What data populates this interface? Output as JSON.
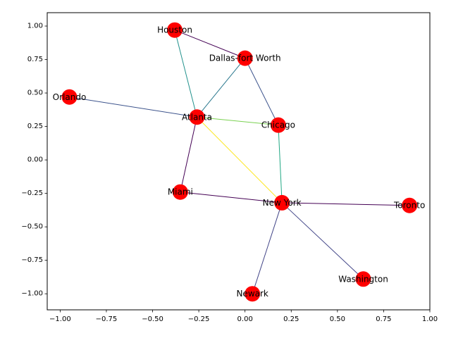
{
  "chart_data": {
    "type": "scatter",
    "title": "",
    "xlabel": "",
    "ylabel": "",
    "xlim": [
      -1.07,
      1.0
    ],
    "ylim": [
      -1.12,
      1.1
    ],
    "xticks": [
      -1.0,
      -0.75,
      -0.5,
      -0.25,
      0.0,
      0.25,
      0.5,
      0.75,
      1.0
    ],
    "xtick_labels": [
      "−1.00",
      "−0.75",
      "−0.50",
      "−0.25",
      "0.00",
      "0.25",
      "0.50",
      "0.75",
      "1.00"
    ],
    "yticks": [
      1.0,
      0.75,
      0.5,
      0.25,
      0.0,
      -0.25,
      -0.5,
      -0.75,
      -1.0
    ],
    "ytick_labels": [
      "1.00",
      "0.75",
      "0.50",
      "0.25",
      "0.00",
      "−0.25",
      "−0.50",
      "−0.75",
      "−1.00"
    ],
    "grid": false,
    "node_color": "#ff0000",
    "nodes": [
      {
        "name": "Houston",
        "x": -0.38,
        "y": 0.97
      },
      {
        "name": "Dallas-fort Worth",
        "x": 0.0,
        "y": 0.76
      },
      {
        "name": "Orlando",
        "x": -0.95,
        "y": 0.47
      },
      {
        "name": "Atlanta",
        "x": -0.26,
        "y": 0.32
      },
      {
        "name": "Chicago",
        "x": 0.18,
        "y": 0.26
      },
      {
        "name": "Miami",
        "x": -0.35,
        "y": -0.24
      },
      {
        "name": "New York",
        "x": 0.2,
        "y": -0.32
      },
      {
        "name": "Toronto",
        "x": 0.89,
        "y": -0.34
      },
      {
        "name": "Washington",
        "x": 0.64,
        "y": -0.89
      },
      {
        "name": "Newark",
        "x": 0.04,
        "y": -1.0
      }
    ],
    "edges": [
      {
        "source": "Houston",
        "target": "Dallas-fort Worth",
        "color": "#440154"
      },
      {
        "source": "Houston",
        "target": "Atlanta",
        "color": "#21918c"
      },
      {
        "source": "Dallas-fort Worth",
        "target": "Atlanta",
        "color": "#2a788e"
      },
      {
        "source": "Dallas-fort Worth",
        "target": "Chicago",
        "color": "#3b528b"
      },
      {
        "source": "Orlando",
        "target": "Atlanta",
        "color": "#3b528b"
      },
      {
        "source": "Atlanta",
        "target": "Chicago",
        "color": "#7ad151"
      },
      {
        "source": "Atlanta",
        "target": "New York",
        "color": "#fde725"
      },
      {
        "source": "Atlanta",
        "target": "Miami",
        "color": "#440154"
      },
      {
        "source": "Chicago",
        "target": "New York",
        "color": "#22a884"
      },
      {
        "source": "Miami",
        "target": "New York",
        "color": "#440154"
      },
      {
        "source": "New York",
        "target": "Toronto",
        "color": "#440154"
      },
      {
        "source": "New York",
        "target": "Washington",
        "color": "#414487"
      },
      {
        "source": "New York",
        "target": "Newark",
        "color": "#414487"
      }
    ]
  }
}
